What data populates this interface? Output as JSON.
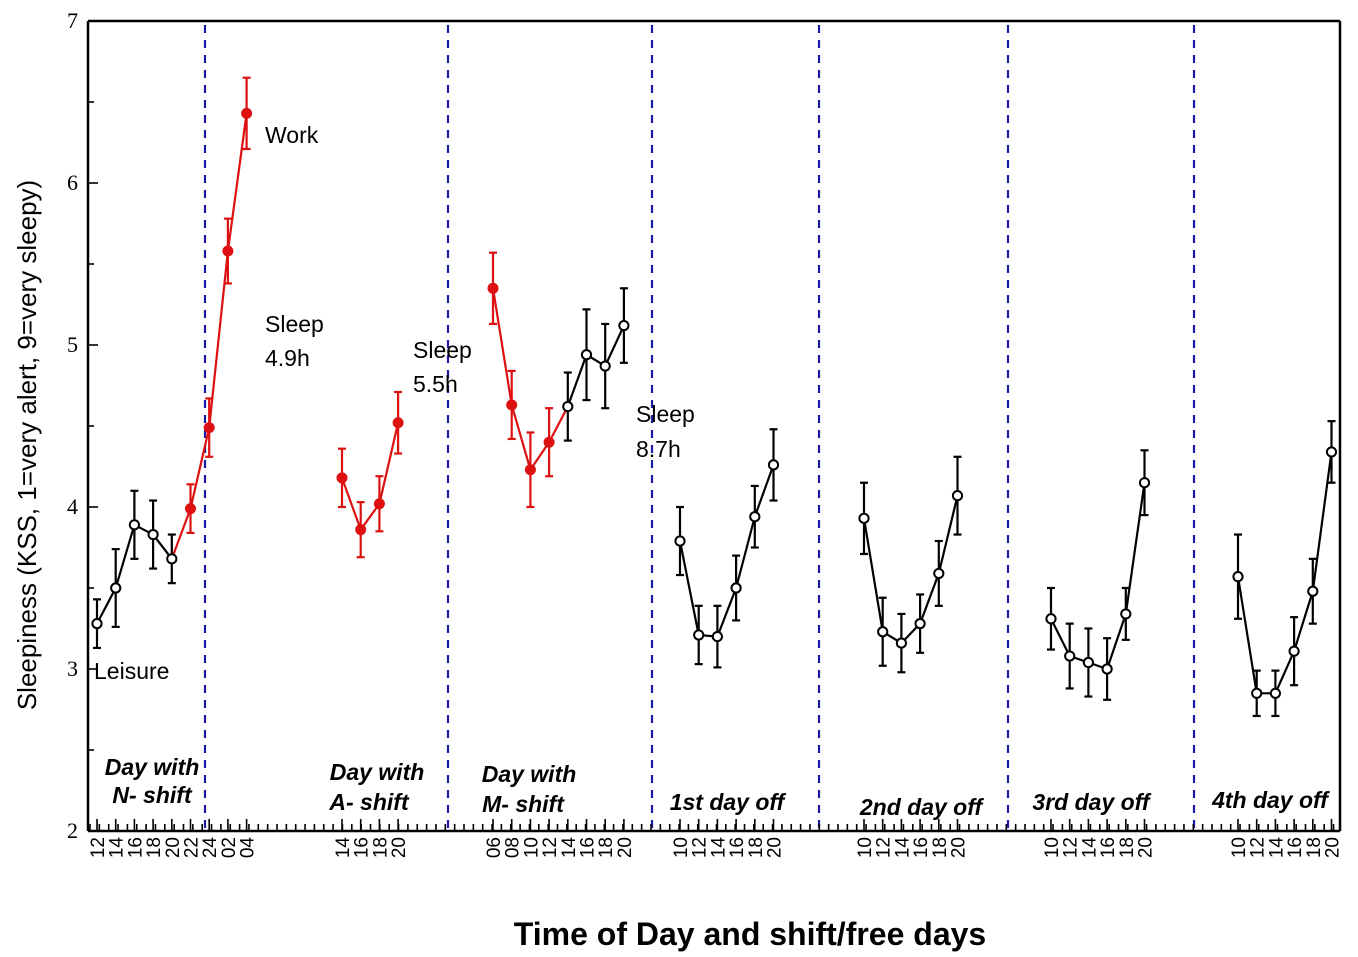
{
  "chart_data": {
    "type": "line",
    "title": "",
    "xlabel": "Time of Day and shift/free days",
    "ylabel": "Sleepiness (KSS, 1=very alert, 9=very sleepy)",
    "ylim": [
      2,
      7
    ],
    "yticks": [
      "2",
      "3",
      "4",
      "5",
      "6",
      "7"
    ],
    "colors": {
      "work": "#dd1111",
      "leisure": "#000000",
      "divider": "#1a1aa6"
    },
    "groups": [
      {
        "label_lines": [
          "Day with",
          "N- shift"
        ],
        "ticks": [
          "12",
          "14",
          "16",
          "18",
          "20",
          "22",
          "24",
          "02",
          "04"
        ],
        "points": [
          {
            "tick": "12",
            "value": 3.28,
            "err": 0.15,
            "condition": "leisure"
          },
          {
            "tick": "14",
            "value": 3.5,
            "err": 0.24,
            "condition": "leisure"
          },
          {
            "tick": "16",
            "value": 3.89,
            "err": 0.21,
            "condition": "leisure"
          },
          {
            "tick": "18",
            "value": 3.83,
            "err": 0.21,
            "condition": "leisure"
          },
          {
            "tick": "20",
            "value": 3.68,
            "err": 0.15,
            "condition": "leisure"
          },
          {
            "tick": "22",
            "value": 3.99,
            "err": 0.15,
            "condition": "work"
          },
          {
            "tick": "24",
            "value": 4.49,
            "err": 0.18,
            "condition": "work"
          },
          {
            "tick": "02",
            "value": 5.58,
            "err": 0.2,
            "condition": "work"
          },
          {
            "tick": "04",
            "value": 6.43,
            "err": 0.22,
            "condition": "work"
          }
        ]
      },
      {
        "label_lines": [
          "Day with",
          "A- shift"
        ],
        "ticks": [
          "14",
          "16",
          "18",
          "20"
        ],
        "points": [
          {
            "tick": "14",
            "value": 4.18,
            "err": 0.18,
            "condition": "work"
          },
          {
            "tick": "16",
            "value": 3.86,
            "err": 0.17,
            "condition": "work"
          },
          {
            "tick": "18",
            "value": 4.02,
            "err": 0.17,
            "condition": "work"
          },
          {
            "tick": "20",
            "value": 4.52,
            "err": 0.19,
            "condition": "work"
          }
        ]
      },
      {
        "label_lines": [
          "Day with",
          "M- shift"
        ],
        "ticks": [
          "06",
          "08",
          "10",
          "12",
          "14",
          "16",
          "18",
          "20"
        ],
        "points": [
          {
            "tick": "06",
            "value": 5.35,
            "err": 0.22,
            "condition": "work"
          },
          {
            "tick": "08",
            "value": 4.63,
            "err": 0.21,
            "condition": "work"
          },
          {
            "tick": "10",
            "value": 4.23,
            "err": 0.23,
            "condition": "work"
          },
          {
            "tick": "12",
            "value": 4.4,
            "err": 0.21,
            "condition": "work"
          },
          {
            "tick": "14",
            "value": 4.62,
            "err": 0.21,
            "condition": "leisure"
          },
          {
            "tick": "16",
            "value": 4.94,
            "err": 0.28,
            "condition": "leisure"
          },
          {
            "tick": "18",
            "value": 4.87,
            "err": 0.26,
            "condition": "leisure"
          },
          {
            "tick": "20",
            "value": 5.12,
            "err": 0.23,
            "condition": "leisure"
          }
        ]
      },
      {
        "label_lines": [
          "1st day off"
        ],
        "ticks": [
          "10",
          "12",
          "14",
          "16",
          "18",
          "20"
        ],
        "points": [
          {
            "tick": "10",
            "value": 3.79,
            "err": 0.21,
            "condition": "leisure"
          },
          {
            "tick": "12",
            "value": 3.21,
            "err": 0.18,
            "condition": "leisure"
          },
          {
            "tick": "14",
            "value": 3.2,
            "err": 0.19,
            "condition": "leisure"
          },
          {
            "tick": "16",
            "value": 3.5,
            "err": 0.2,
            "condition": "leisure"
          },
          {
            "tick": "18",
            "value": 3.94,
            "err": 0.19,
            "condition": "leisure"
          },
          {
            "tick": "20",
            "value": 4.26,
            "err": 0.22,
            "condition": "leisure"
          }
        ]
      },
      {
        "label_lines": [
          "2nd day off"
        ],
        "ticks": [
          "10",
          "12",
          "14",
          "16",
          "18",
          "20"
        ],
        "points": [
          {
            "tick": "10",
            "value": 3.93,
            "err": 0.22,
            "condition": "leisure"
          },
          {
            "tick": "12",
            "value": 3.23,
            "err": 0.21,
            "condition": "leisure"
          },
          {
            "tick": "14",
            "value": 3.16,
            "err": 0.18,
            "condition": "leisure"
          },
          {
            "tick": "16",
            "value": 3.28,
            "err": 0.18,
            "condition": "leisure"
          },
          {
            "tick": "18",
            "value": 3.59,
            "err": 0.2,
            "condition": "leisure"
          },
          {
            "tick": "20",
            "value": 4.07,
            "err": 0.24,
            "condition": "leisure"
          }
        ]
      },
      {
        "label_lines": [
          "3rd day off"
        ],
        "ticks": [
          "10",
          "12",
          "14",
          "16",
          "18",
          "20"
        ],
        "points": [
          {
            "tick": "10",
            "value": 3.31,
            "err": 0.19,
            "condition": "leisure"
          },
          {
            "tick": "12",
            "value": 3.08,
            "err": 0.2,
            "condition": "leisure"
          },
          {
            "tick": "14",
            "value": 3.04,
            "err": 0.21,
            "condition": "leisure"
          },
          {
            "tick": "16",
            "value": 3.0,
            "err": 0.19,
            "condition": "leisure"
          },
          {
            "tick": "18",
            "value": 3.34,
            "err": 0.16,
            "condition": "leisure"
          },
          {
            "tick": "20",
            "value": 4.15,
            "err": 0.2,
            "condition": "leisure"
          }
        ]
      },
      {
        "label_lines": [
          "4th day off"
        ],
        "ticks": [
          "10",
          "12",
          "14",
          "16",
          "18",
          "20"
        ],
        "points": [
          {
            "tick": "10",
            "value": 3.57,
            "err": 0.26,
            "condition": "leisure"
          },
          {
            "tick": "12",
            "value": 2.85,
            "err": 0.14,
            "condition": "leisure"
          },
          {
            "tick": "14",
            "value": 2.85,
            "err": 0.14,
            "condition": "leisure"
          },
          {
            "tick": "16",
            "value": 3.11,
            "err": 0.21,
            "condition": "leisure"
          },
          {
            "tick": "18",
            "value": 3.48,
            "err": 0.2,
            "condition": "leisure"
          },
          {
            "tick": "20",
            "value": 4.34,
            "err": 0.19,
            "condition": "leisure"
          }
        ]
      }
    ],
    "annotations": [
      {
        "lines": [
          "Work"
        ],
        "condition": "work"
      },
      {
        "lines": [
          "Leisure"
        ],
        "condition": "leisure"
      },
      {
        "lines": [
          "Sleep",
          "4.9h"
        ],
        "condition": "leisure"
      },
      {
        "lines": [
          "Sleep",
          "5.5h"
        ],
        "condition": "leisure"
      },
      {
        "lines": [
          "Sleep",
          "8.7h"
        ],
        "condition": "leisure"
      }
    ]
  }
}
